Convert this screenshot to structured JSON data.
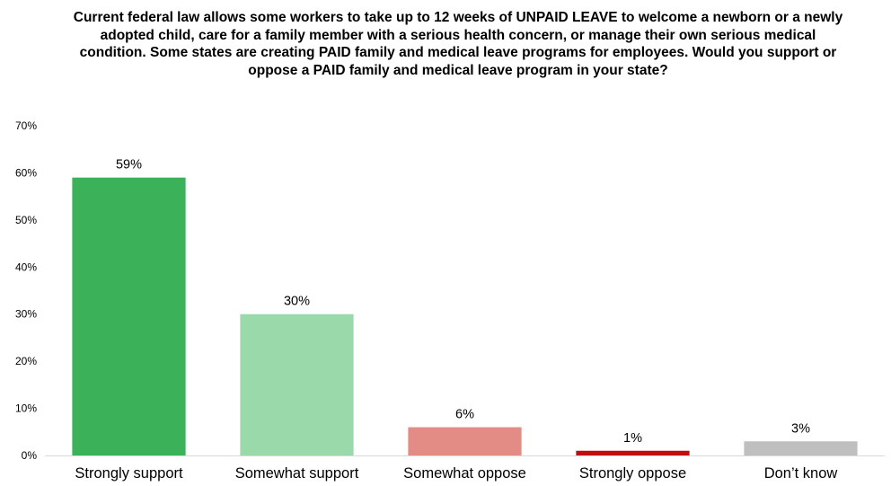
{
  "chart_data": {
    "type": "bar",
    "title": "Current federal law allows some workers to take up to 12 weeks of UNPAID LEAVE to welcome a newborn or a newly adopted child, care for a family member with a serious health concern, or manage their own serious medical condition. Some states are creating PAID family and medical leave programs for employees. Would you support or oppose a PAID family and medical leave program in your state?",
    "xlabel": "",
    "ylabel": "",
    "categories": [
      "Strongly support",
      "Somewhat support",
      "Somewhat oppose",
      "Strongly oppose",
      "Don’t know"
    ],
    "values": [
      59,
      30,
      6,
      1,
      3
    ],
    "value_labels": [
      "59%",
      "30%",
      "6%",
      "1%",
      "3%"
    ],
    "bar_colors": [
      "#3bb15a",
      "#9ad9aa",
      "#e38c85",
      "#c20d0d",
      "#bfbfbf"
    ],
    "ylim": [
      0,
      70
    ],
    "yticks": [
      0,
      10,
      20,
      30,
      40,
      50,
      60,
      70
    ],
    "ytick_labels": [
      "0%",
      "10%",
      "20%",
      "30%",
      "40%",
      "50%",
      "60%",
      "70%"
    ],
    "grid": false,
    "legend": "none"
  }
}
